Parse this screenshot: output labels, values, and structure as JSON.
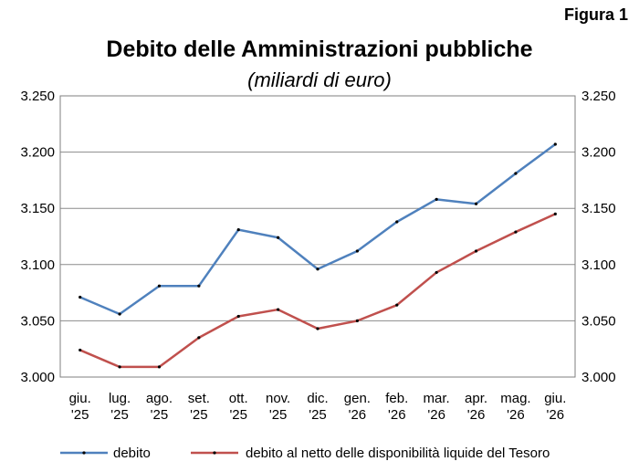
{
  "figure_label": "Figura 1",
  "chart_data": {
    "type": "line",
    "title": "Debito delle Amministrazioni pubbliche",
    "subtitle": "(miliardi di euro)",
    "categories": [
      [
        "giu.",
        "'25"
      ],
      [
        "lug.",
        "'25"
      ],
      [
        "ago.",
        "'25"
      ],
      [
        "set.",
        "'25"
      ],
      [
        "ott.",
        "'25"
      ],
      [
        "nov.",
        "'25"
      ],
      [
        "dic.",
        "'25"
      ],
      [
        "gen.",
        "'26"
      ],
      [
        "feb.",
        "'26"
      ],
      [
        "mar.",
        "'26"
      ],
      [
        "apr.",
        "'26"
      ],
      [
        "mag.",
        "'26"
      ],
      [
        "giu.",
        "'26"
      ]
    ],
    "ylim": [
      3000,
      3250
    ],
    "yticks": [
      3000,
      3050,
      3100,
      3150,
      3200,
      3250
    ],
    "ytick_labels": [
      "3.000",
      "3.050",
      "3.100",
      "3.150",
      "3.200",
      "3.250"
    ],
    "grid": true,
    "legend_position": "bottom",
    "series": [
      {
        "name": "debito",
        "color": "#4f81bd",
        "values": [
          3071,
          3056,
          3081,
          3081,
          3131,
          3124,
          3096,
          3112,
          3138,
          3158,
          3154,
          3181,
          3207
        ]
      },
      {
        "name": "debito al netto delle disponibilità liquide del Tesoro",
        "color": "#c0504d",
        "values": [
          3024,
          3009,
          3009,
          3035,
          3054,
          3060,
          3043,
          3050,
          3064,
          3093,
          3112,
          3129,
          3145
        ]
      }
    ]
  }
}
